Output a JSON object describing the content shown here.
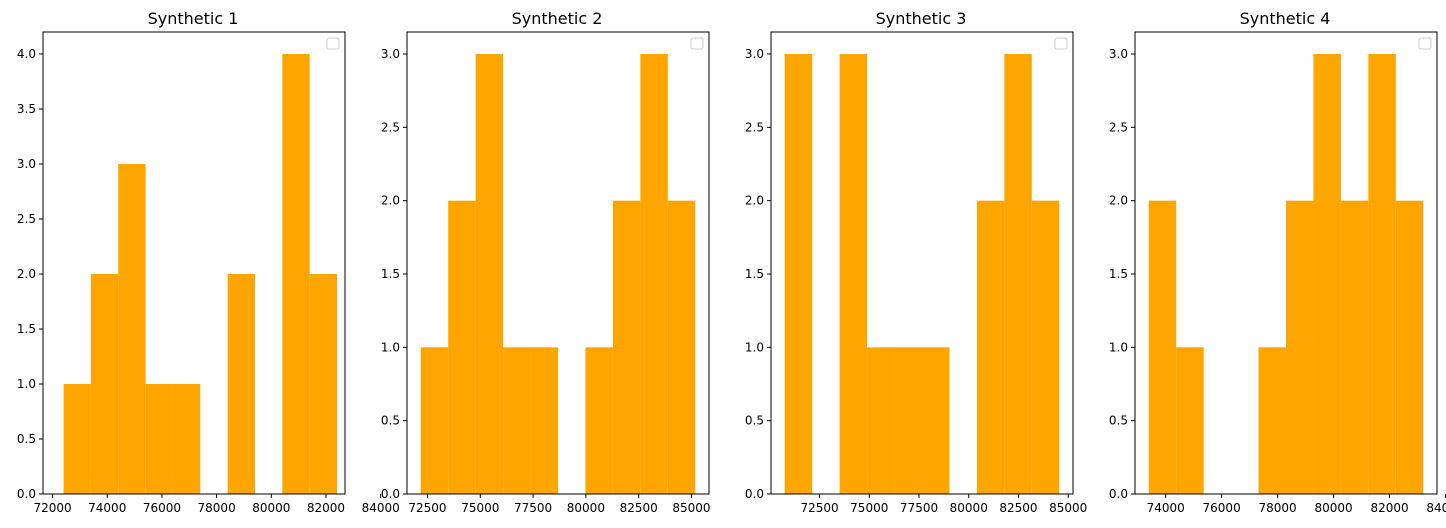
{
  "chart_data": [
    {
      "type": "bar",
      "title": "Synthetic 1",
      "color": "#ffa500",
      "legend": "top-right (empty)",
      "grid": false,
      "bins": [
        {
          "x0": 72403,
          "x1": 73403,
          "count": 1
        },
        {
          "x0": 73403,
          "x1": 74403,
          "count": 2
        },
        {
          "x0": 74403,
          "x1": 75403,
          "count": 3
        },
        {
          "x0": 75403,
          "x1": 76403,
          "count": 1
        },
        {
          "x0": 76403,
          "x1": 77403,
          "count": 1
        },
        {
          "x0": 78403,
          "x1": 79403,
          "count": 2
        },
        {
          "x0": 80403,
          "x1": 81403,
          "count": 4
        },
        {
          "x0": 81403,
          "x1": 82403,
          "count": 2
        }
      ],
      "xlim": [
        71650,
        82695
      ],
      "ylim": [
        0,
        4.2
      ],
      "xticks": [
        72000,
        74000,
        76000,
        78000,
        80000,
        82000,
        84000
      ],
      "xtick_labels": [
        "72000",
        "74000",
        "76000",
        "78000",
        "80000",
        "82000",
        "84000"
      ],
      "yticks": [
        0,
        0.5,
        1.0,
        1.5,
        2.0,
        2.5,
        3.0,
        3.5,
        4.0
      ],
      "ytick_labels": [
        "0.0",
        "0.5",
        "1.0",
        "1.5",
        "2.0",
        "2.5",
        "3.0",
        "3.5",
        "4.0"
      ]
    },
    {
      "type": "bar",
      "title": "Synthetic 2",
      "color": "#ffa500",
      "legend": "top-right (empty)",
      "grid": false,
      "bins": [
        {
          "x0": 72180,
          "x1": 73480,
          "count": 1
        },
        {
          "x0": 73480,
          "x1": 74780,
          "count": 2
        },
        {
          "x0": 74780,
          "x1": 76080,
          "count": 3
        },
        {
          "x0": 76080,
          "x1": 77380,
          "count": 1
        },
        {
          "x0": 77380,
          "x1": 78680,
          "count": 1
        },
        {
          "x0": 79980,
          "x1": 81280,
          "count": 1
        },
        {
          "x0": 81280,
          "x1": 82580,
          "count": 2
        },
        {
          "x0": 82580,
          "x1": 83880,
          "count": 3
        },
        {
          "x0": 83880,
          "x1": 85180,
          "count": 2
        }
      ],
      "xlim": [
        71530,
        85830
      ],
      "ylim": [
        0,
        3.15
      ],
      "xticks": [
        72500,
        75000,
        77500,
        80000,
        82500,
        85000
      ],
      "xtick_labels": [
        "72500",
        "75000",
        "77500",
        "80000",
        "82500",
        "85000"
      ],
      "yticks": [
        0,
        0.5,
        1.0,
        1.5,
        2.0,
        2.5,
        3.0
      ],
      "ytick_labels": [
        "0.0",
        "0.5",
        "1.0",
        "1.5",
        "2.0",
        "2.5",
        "3.0"
      ]
    },
    {
      "type": "bar",
      "title": "Synthetic 3",
      "color": "#ffa500",
      "legend": "top-right (empty)",
      "grid": false,
      "bins": [
        {
          "x0": 70750,
          "x1": 72130,
          "count": 3
        },
        {
          "x0": 73510,
          "x1": 74890,
          "count": 3
        },
        {
          "x0": 74890,
          "x1": 76270,
          "count": 1
        },
        {
          "x0": 76270,
          "x1": 77650,
          "count": 1
        },
        {
          "x0": 77650,
          "x1": 79030,
          "count": 1
        },
        {
          "x0": 80410,
          "x1": 81790,
          "count": 2
        },
        {
          "x0": 81790,
          "x1": 83170,
          "count": 3
        },
        {
          "x0": 83170,
          "x1": 84550,
          "count": 2
        }
      ],
      "xlim": [
        70060,
        85240
      ],
      "ylim": [
        0,
        3.15
      ],
      "xticks": [
        72500,
        75000,
        77500,
        80000,
        82500,
        85000
      ],
      "xtick_labels": [
        "72500",
        "75000",
        "77500",
        "80000",
        "82500",
        "85000"
      ],
      "yticks": [
        0,
        0.5,
        1.0,
        1.5,
        2.0,
        2.5,
        3.0
      ],
      "ytick_labels": [
        "0.0",
        "0.5",
        "1.0",
        "1.5",
        "2.0",
        "2.5",
        "3.0"
      ]
    },
    {
      "type": "bar",
      "title": "Synthetic 4",
      "color": "#ffa500",
      "legend": "top-right (empty)",
      "grid": false,
      "bins": [
        {
          "x0": 73395,
          "x1": 74376,
          "count": 2
        },
        {
          "x0": 74376,
          "x1": 75357,
          "count": 1
        },
        {
          "x0": 77319,
          "x1": 78300,
          "count": 1
        },
        {
          "x0": 78300,
          "x1": 79281,
          "count": 2
        },
        {
          "x0": 79281,
          "x1": 80262,
          "count": 3
        },
        {
          "x0": 80262,
          "x1": 81243,
          "count": 2
        },
        {
          "x0": 81243,
          "x1": 82224,
          "count": 3
        },
        {
          "x0": 82224,
          "x1": 83205,
          "count": 2
        }
      ],
      "xlim": [
        72904,
        83696
      ],
      "ylim": [
        0,
        3.15
      ],
      "xticks": [
        74000,
        76000,
        78000,
        80000,
        82000,
        84000
      ],
      "xtick_labels": [
        "74000",
        "76000",
        "78000",
        "80000",
        "82000",
        "84000"
      ],
      "yticks": [
        0,
        0.5,
        1.0,
        1.5,
        2.0,
        2.5,
        3.0
      ],
      "ytick_labels": [
        "0.0",
        "0.5",
        "1.0",
        "1.5",
        "2.0",
        "2.5",
        "3.0"
      ]
    }
  ]
}
